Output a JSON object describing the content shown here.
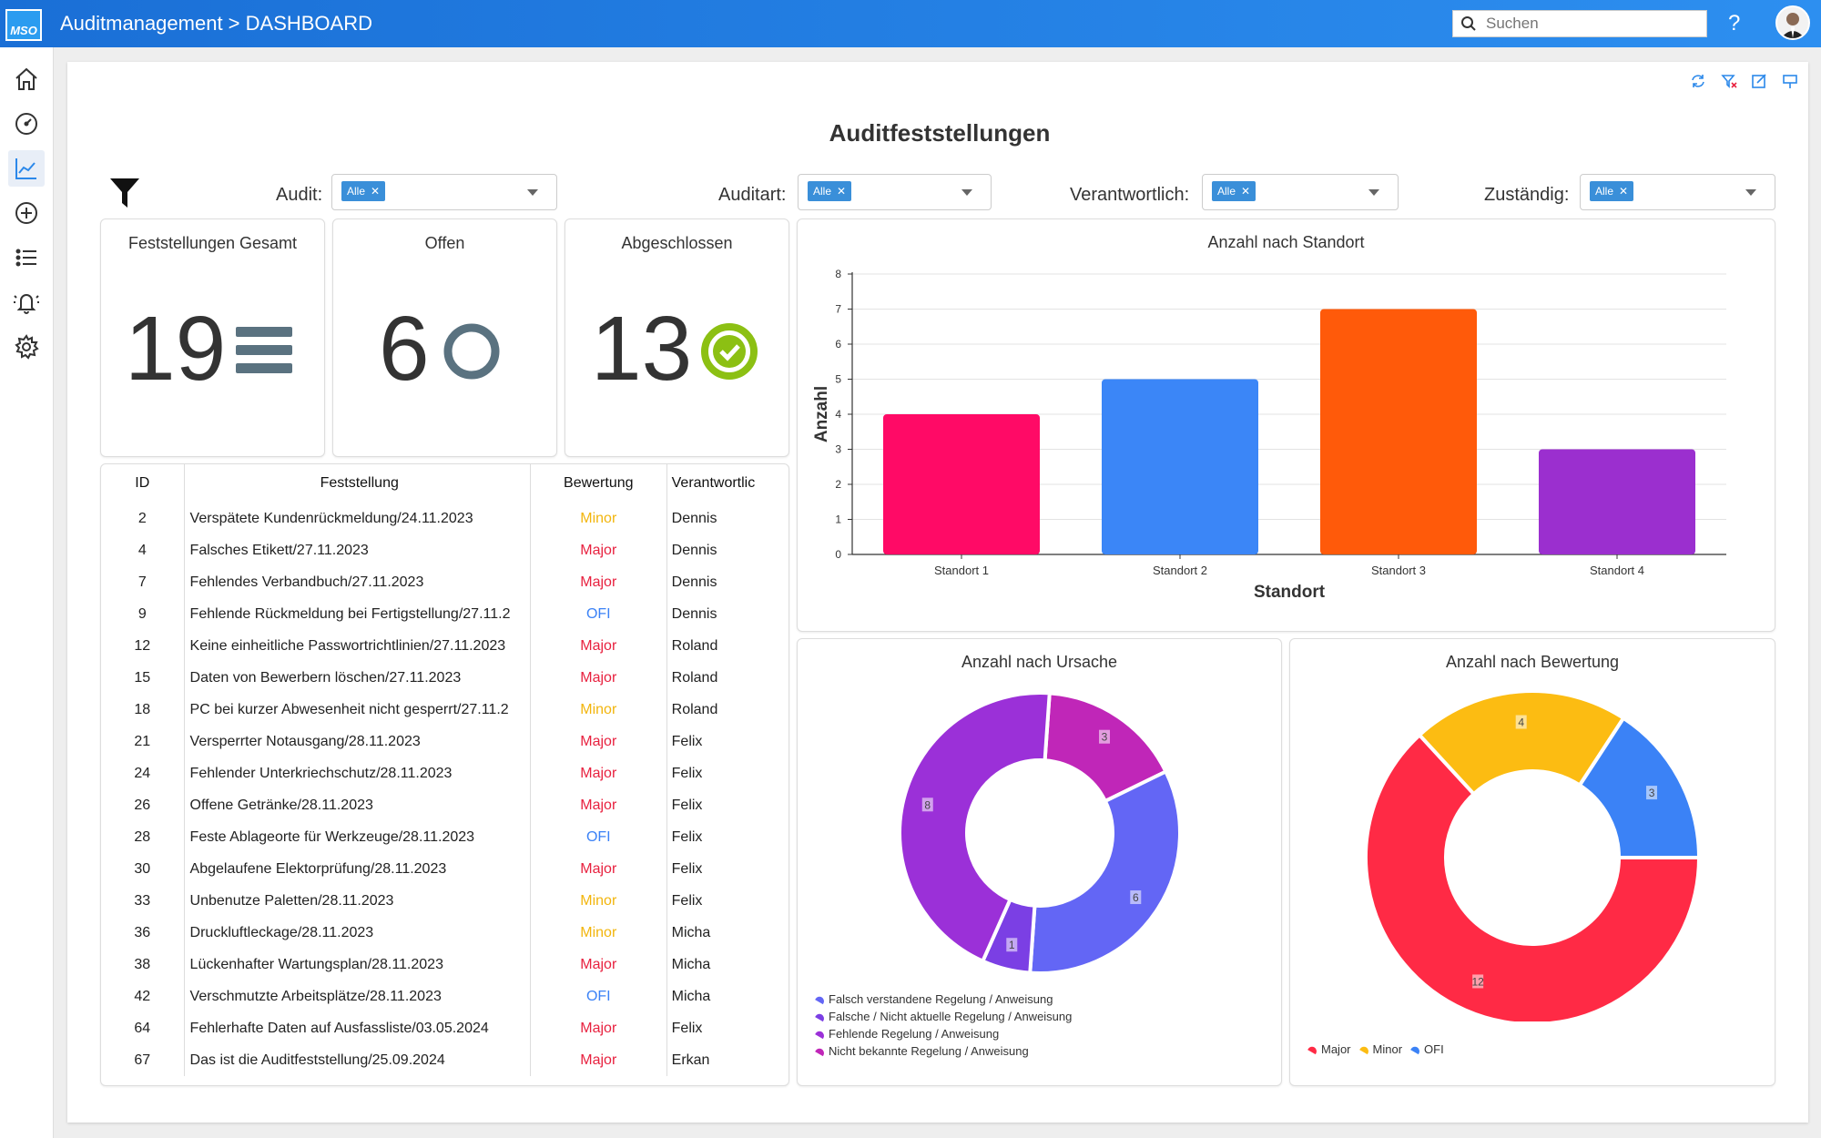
{
  "app": {
    "title": "Auditmanagement > DASHBOARD",
    "logo": "MSO"
  },
  "search": {
    "placeholder": "Suchen"
  },
  "help_label": "?",
  "sidebar": {
    "items": [
      {
        "name": "home-icon"
      },
      {
        "name": "speedometer-icon"
      },
      {
        "name": "chart-line-icon",
        "active": true
      },
      {
        "name": "add-circle-icon"
      },
      {
        "name": "list-icon"
      },
      {
        "name": "bell-icon"
      },
      {
        "name": "gear-icon"
      }
    ]
  },
  "toolbar": {
    "icons": [
      "refresh-icon",
      "clear-filter-icon",
      "edit-icon",
      "pin-icon"
    ]
  },
  "dashboard": {
    "title": "Auditfeststellungen"
  },
  "filters": [
    {
      "label": "Audit:",
      "chip": "Alle"
    },
    {
      "label": "Auditart:",
      "chip": "Alle"
    },
    {
      "label": "Verantwortlich:",
      "chip": "Alle"
    },
    {
      "label": "Zuständig:",
      "chip": "Alle"
    }
  ],
  "kpis": [
    {
      "title": "Feststellungen Gesamt",
      "value": "19",
      "icon": "list-icon"
    },
    {
      "title": "Offen",
      "value": "6",
      "icon": "circle-open-icon"
    },
    {
      "title": "Abgeschlossen",
      "value": "13",
      "icon": "check-circle-icon"
    }
  ],
  "colors": {
    "major": "#e8213f",
    "minor": "#f2b50c",
    "ofi": "#3b82f6",
    "accent": "#2b88ea"
  },
  "table": {
    "headers": [
      "ID",
      "Feststellung",
      "Bewertung",
      "Verantwortlic"
    ],
    "rows": [
      [
        "2",
        "Verspätete Kundenrückmeldung/24.11.2023",
        "Minor",
        "Dennis"
      ],
      [
        "4",
        "Falsches Etikett/27.11.2023",
        "Major",
        "Dennis"
      ],
      [
        "7",
        "Fehlendes Verbandbuch/27.11.2023",
        "Major",
        "Dennis"
      ],
      [
        "9",
        "Fehlende Rückmeldung bei Fertigstellung/27.11.2",
        "OFI",
        "Dennis"
      ],
      [
        "12",
        "Keine einheitliche Passwortrichtlinien/27.11.2023",
        "Major",
        "Roland"
      ],
      [
        "15",
        "Daten von Bewerbern löschen/27.11.2023",
        "Major",
        "Roland"
      ],
      [
        "18",
        "PC bei kurzer Abwesenheit nicht gesperrt/27.11.2",
        "Minor",
        "Roland"
      ],
      [
        "21",
        "Versperrter Notausgang/28.11.2023",
        "Major",
        "Felix"
      ],
      [
        "24",
        "Fehlender Unterkriechschutz/28.11.2023",
        "Major",
        "Felix"
      ],
      [
        "26",
        "Offene Getränke/28.11.2023",
        "Major",
        "Felix"
      ],
      [
        "28",
        "Feste Ablageorte für Werkzeuge/28.11.2023",
        "OFI",
        "Felix"
      ],
      [
        "30",
        "Abgelaufene Elektorprüfung/28.11.2023",
        "Major",
        "Felix"
      ],
      [
        "33",
        "Unbenutze Paletten/28.11.2023",
        "Minor",
        "Felix"
      ],
      [
        "36",
        "Druckluftleckage/28.11.2023",
        "Minor",
        "Micha"
      ],
      [
        "38",
        "Lückenhafter Wartungsplan/28.11.2023",
        "Major",
        "Micha"
      ],
      [
        "42",
        "Verschmutzte Arbeitsplätze/28.11.2023",
        "OFI",
        "Micha"
      ],
      [
        "64",
        "Fehlerhafte Daten auf Ausfassliste/03.05.2024",
        "Major",
        "Felix"
      ],
      [
        "67",
        "Das ist die Auditfeststellung/25.09.2024",
        "Major",
        "Erkan"
      ]
    ]
  },
  "chart_data": [
    {
      "type": "bar",
      "title": "Anzahl nach Standort",
      "categories": [
        "Standort 1",
        "Standort 2",
        "Standort 3",
        "Standort 4"
      ],
      "values": [
        4,
        5,
        7,
        3
      ],
      "colors": [
        "#ff0a66",
        "#3b86f7",
        "#ff5a0a",
        "#9b2fcf"
      ],
      "xlabel": "Standort",
      "ylabel": "Anzahl",
      "ylim": [
        0,
        8
      ],
      "yticks": [
        "0",
        "1",
        "2",
        "3",
        "4",
        "5",
        "6",
        "7",
        "8"
      ],
      "grid": true
    },
    {
      "type": "pie",
      "title": "Anzahl nach Ursache",
      "labels": [
        "Falsch verstandene Regelung / Anweisung",
        "Falsche / Nicht aktuelle Regelung / Anweisung",
        "Fehlende Regelung / Anweisung",
        "Nicht bekannte Regelung / Anweisung"
      ],
      "values": [
        6,
        1,
        8,
        3
      ],
      "colors": [
        "#6366f5",
        "#7b3fe4",
        "#9b30d8",
        "#c026b8"
      ],
      "legend": "bottom-left"
    },
    {
      "type": "pie",
      "title": "Anzahl nach Bewertung",
      "labels": [
        "Major",
        "Minor",
        "OFI"
      ],
      "values": [
        12,
        4,
        3
      ],
      "colors": [
        "#ff2a45",
        "#fcbc12",
        "#3b82f6"
      ],
      "legend": "bottom-left"
    }
  ]
}
